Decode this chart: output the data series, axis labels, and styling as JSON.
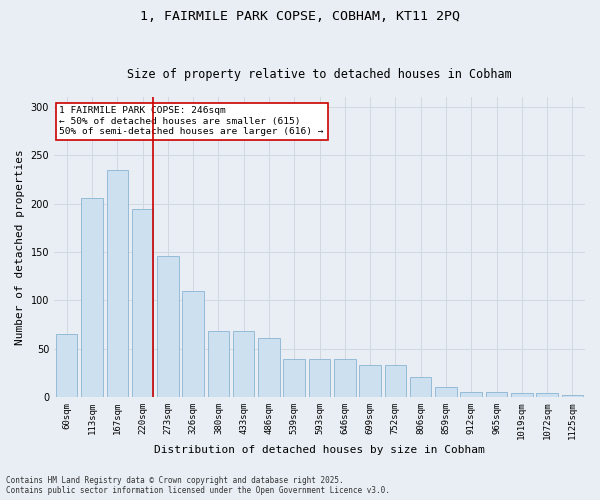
{
  "title": "1, FAIRMILE PARK COPSE, COBHAM, KT11 2PQ",
  "subtitle": "Size of property relative to detached houses in Cobham",
  "xlabel": "Distribution of detached houses by size in Cobham",
  "ylabel": "Number of detached properties",
  "categories": [
    "60sqm",
    "113sqm",
    "167sqm",
    "220sqm",
    "273sqm",
    "326sqm",
    "380sqm",
    "433sqm",
    "486sqm",
    "539sqm",
    "593sqm",
    "646sqm",
    "699sqm",
    "752sqm",
    "806sqm",
    "859sqm",
    "912sqm",
    "965sqm",
    "1019sqm",
    "1072sqm",
    "1125sqm"
  ],
  "values": [
    65,
    206,
    235,
    195,
    146,
    110,
    68,
    68,
    61,
    39,
    39,
    39,
    33,
    33,
    21,
    10,
    5,
    5,
    4,
    4,
    2
  ],
  "bar_color": "#cce0f0",
  "bar_edge_color": "#8ab4d4",
  "grid_color": "#d0d8e0",
  "vline_color": "#cc0000",
  "annotation_text": "1 FAIRMILE PARK COPSE: 246sqm\n← 50% of detached houses are smaller (615)\n50% of semi-detached houses are larger (616) →",
  "annotation_box_color": "#ffffff",
  "annotation_box_edge_color": "#cc0000",
  "footnote1": "Contains HM Land Registry data © Crown copyright and database right 2025.",
  "footnote2": "Contains public sector information licensed under the Open Government Licence v3.0.",
  "background_color": "#e8eef4",
  "ylim": [
    0,
    310
  ],
  "title_fontsize": 9.5,
  "subtitle_fontsize": 8.5,
  "tick_fontsize": 6.5,
  "axis_label_fontsize": 8,
  "footnote_fontsize": 5.5,
  "annotation_fontsize": 6.8
}
